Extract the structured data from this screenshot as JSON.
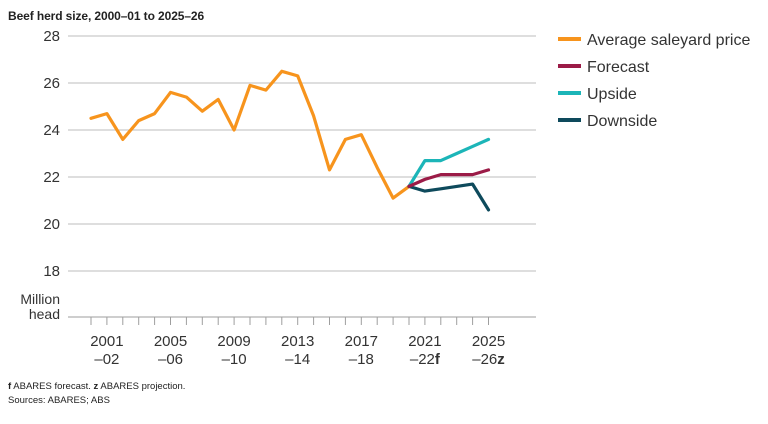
{
  "chart_data": {
    "type": "line",
    "title": "Beef herd size, 2000–01 to 2025–26",
    "ylabel_line1": "Million",
    "ylabel_line2": "head",
    "ylim": [
      16,
      28
    ],
    "yticks": [
      18,
      20,
      22,
      24,
      26,
      28
    ],
    "xticks": [
      {
        "year": 2001,
        "line1": "2001",
        "line2": "–02",
        "suffix": ""
      },
      {
        "year": 2005,
        "line1": "2005",
        "line2": "–06",
        "suffix": ""
      },
      {
        "year": 2009,
        "line1": "2009",
        "line2": "–10",
        "suffix": ""
      },
      {
        "year": 2013,
        "line1": "2013",
        "line2": "–14",
        "suffix": ""
      },
      {
        "year": 2017,
        "line1": "2017",
        "line2": "–18",
        "suffix": ""
      },
      {
        "year": 2021,
        "line1": "2021",
        "line2": "–22",
        "suffix": "f"
      },
      {
        "year": 2025,
        "line1": "2025",
        "line2": "–26",
        "suffix": "z"
      }
    ],
    "grid": "horizontal",
    "legend_position": "right",
    "series": [
      {
        "name": "Average saleyard price",
        "color": "#f7941d",
        "x": [
          2000,
          2001,
          2002,
          2003,
          2004,
          2005,
          2006,
          2007,
          2008,
          2009,
          2010,
          2011,
          2012,
          2013,
          2014,
          2015,
          2016,
          2017,
          2018,
          2019,
          2020
        ],
        "y": [
          24.5,
          24.7,
          23.6,
          24.4,
          24.7,
          25.6,
          25.4,
          24.8,
          25.3,
          24.0,
          25.9,
          25.7,
          26.5,
          26.3,
          24.6,
          22.3,
          23.6,
          23.8,
          22.4,
          21.1,
          21.6
        ]
      },
      {
        "name": "Forecast",
        "color": "#9b1b47",
        "x": [
          2020,
          2021,
          2022,
          2023,
          2024,
          2025
        ],
        "y": [
          21.6,
          21.9,
          22.1,
          22.1,
          22.1,
          22.3
        ]
      },
      {
        "name": "Upside",
        "color": "#1cb5b8",
        "x": [
          2020,
          2021,
          2022,
          2023,
          2024,
          2025
        ],
        "y": [
          21.6,
          22.7,
          22.7,
          23.0,
          23.3,
          23.6
        ]
      },
      {
        "name": "Downside",
        "color": "#0e4a5c",
        "x": [
          2020,
          2021,
          2022,
          2023,
          2024,
          2025
        ],
        "y": [
          21.6,
          21.4,
          21.5,
          21.6,
          21.7,
          20.6
        ]
      }
    ]
  },
  "footer": {
    "note_f_key": "f",
    "note_f_text": " ABARES forecast. ",
    "note_z_key": "z",
    "note_z_text": " ABARES projection.",
    "sources": "Sources: ABARES; ABS"
  }
}
